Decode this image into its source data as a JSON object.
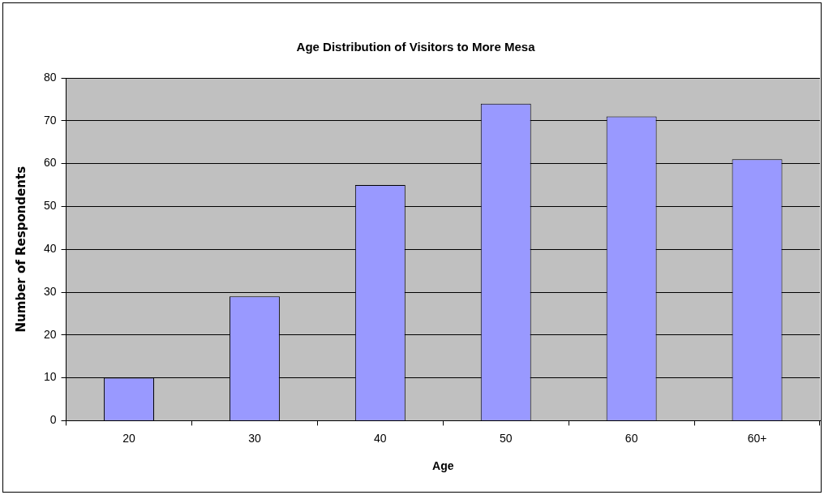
{
  "chart_data": {
    "type": "bar",
    "title": "Age Distribution of Visitors to More Mesa",
    "xlabel": "Age",
    "ylabel": "Number of Respondents",
    "categories": [
      "20",
      "30",
      "40",
      "50",
      "60",
      "60+"
    ],
    "values": [
      10,
      29,
      55,
      74,
      71,
      61
    ],
    "color": "#9999ff",
    "ylim": [
      0,
      80
    ],
    "yticks": [
      0,
      10,
      20,
      30,
      40,
      50,
      60,
      70,
      80
    ],
    "grid": "y",
    "legend": false
  }
}
